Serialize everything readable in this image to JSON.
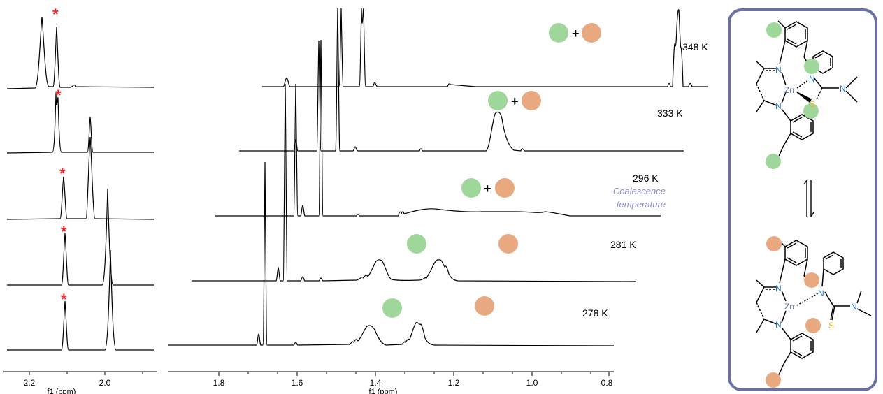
{
  "left_panel": {
    "axis_title": "f1 (ppm)",
    "ticks": [
      "2.2",
      "2.0"
    ],
    "star": "*"
  },
  "main_panel": {
    "axis_title": "f1 (ppm)",
    "ticks": [
      "1.8",
      "1.6",
      "1.4",
      "1.2",
      "1.0",
      "0.8"
    ],
    "plus": "+",
    "coalescence_line1": "Coalescence",
    "coalescence_line2": "temperature"
  },
  "temperatures": [
    "348 K",
    "333 K",
    "296 K",
    "281 K",
    "278 K"
  ],
  "colors": {
    "green": "#9fd69a",
    "orange": "#e8a981",
    "frame": "#6a6fa6",
    "star": "#e8292f",
    "coalescence": "#8a8fc4",
    "nitrogen": "#2b78c4",
    "sulfur": "#e3b11c",
    "zinc": "#5a6a9a"
  },
  "structure": {
    "top": {
      "zn": "Zn",
      "n_labels": [
        "N",
        "N",
        "N",
        "N"
      ],
      "s": "S"
    },
    "bottom": {
      "zn": "Zn",
      "n_labels": [
        "N",
        "N",
        "N",
        "N"
      ],
      "s": "S"
    },
    "equilibrium_icon": "equilibrium-arrows-icon"
  }
}
